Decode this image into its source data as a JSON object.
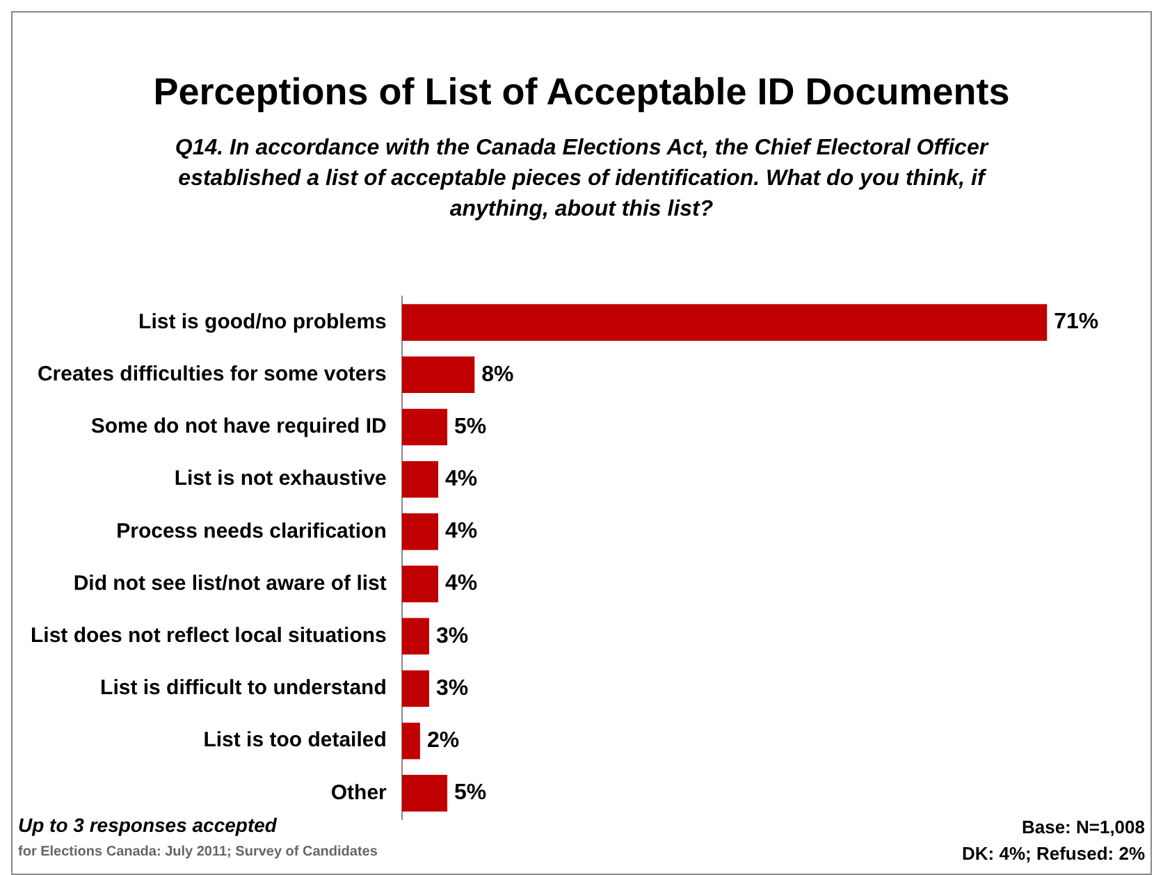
{
  "chart_data": {
    "type": "bar",
    "orientation": "horizontal",
    "title": "Perceptions of List of Acceptable ID Documents",
    "subtitle": "Q14. In accordance with the Canada Elections Act, the Chief Electoral Officer established a list of acceptable pieces of identification. What do you think, if anything, about this list?",
    "categories": [
      "List is good/no problems",
      "Creates difficulties for some voters",
      "Some do not have required ID",
      "List is not exhaustive",
      "Process needs clarification",
      "Did not see list/not aware of list",
      "List does not reflect local situations",
      "List is difficult to understand",
      "List is too detailed",
      "Other"
    ],
    "values": [
      71,
      8,
      5,
      4,
      4,
      4,
      3,
      3,
      2,
      5
    ],
    "value_labels": [
      "71%",
      "8%",
      "5%",
      "4%",
      "4%",
      "4%",
      "3%",
      "3%",
      "2%",
      "5%"
    ],
    "color": "#c00000",
    "legend": false,
    "annotations": [
      "Up to 3 responses accepted",
      "for Elections Canada: July 2011; Survey of Candidates",
      "Base: N=1,008",
      "DK: 4%; Refused: 2%"
    ]
  }
}
